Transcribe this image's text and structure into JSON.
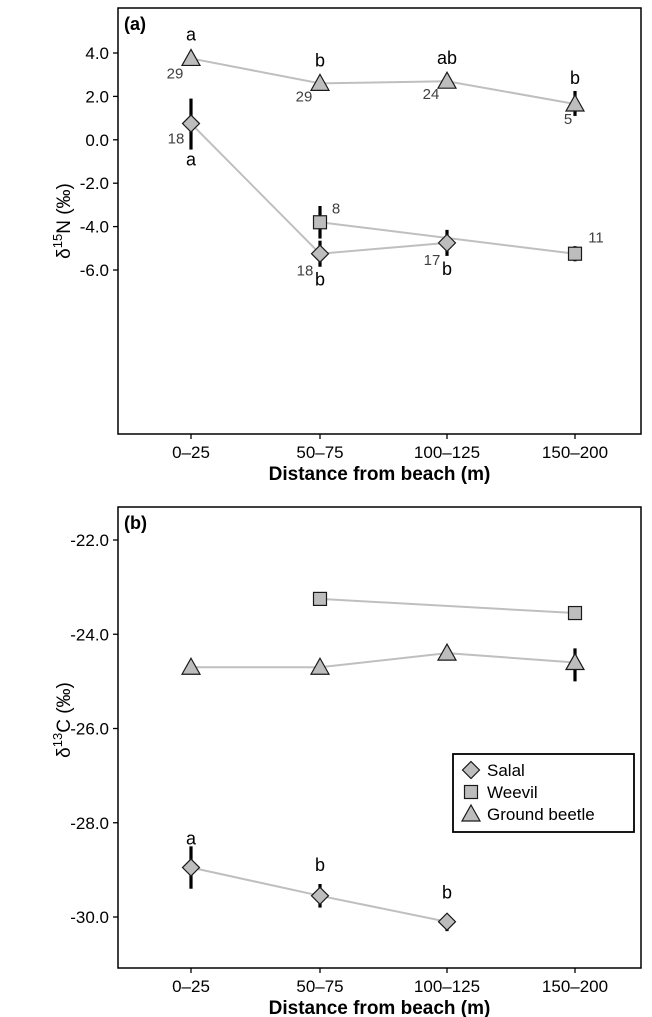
{
  "chart_data": [
    {
      "type": "line",
      "panel_label": "(a)",
      "xlabel": "Distance from beach (m)",
      "ylabel_main": "δ",
      "ylabel_sup": "15",
      "ylabel_rest": "N (‰)",
      "categories": [
        "0–25",
        "50–75",
        "100–125",
        "150–200"
      ],
      "ylim": [
        -7.6,
        5.3
      ],
      "yticks": [
        {
          "value": 4.0,
          "label": "4.0"
        },
        {
          "value": 2.0,
          "label": "2.0"
        },
        {
          "value": 0.0,
          "label": "0.0"
        },
        {
          "value": -2.0,
          "label": "-2.0"
        },
        {
          "value": -4.0,
          "label": "-4.0"
        },
        {
          "value": -6.0,
          "label": "-6.0"
        }
      ],
      "grid": false,
      "series": [
        {
          "name": "Ground beetle",
          "marker": "triangle",
          "points": [
            {
              "x": "0–25",
              "y": 3.75,
              "err_lo": 3.4,
              "err_hi": 4.0,
              "n": "29",
              "letter": "a"
            },
            {
              "x": "50–75",
              "y": 2.6,
              "err_lo": 2.3,
              "err_hi": 2.85,
              "n": "29",
              "letter": "b"
            },
            {
              "x": "100–125",
              "y": 2.7,
              "err_lo": 2.4,
              "err_hi": 3.0,
              "n": "24",
              "letter": "ab"
            },
            {
              "x": "150–200",
              "y": 1.65,
              "err_lo": 1.1,
              "err_hi": 2.25,
              "n": "5",
              "letter": "b"
            }
          ]
        },
        {
          "name": "Salal",
          "marker": "diamond",
          "points": [
            {
              "x": "0–25",
              "y": 0.75,
              "err_lo": -0.45,
              "err_hi": 1.9,
              "n": "18",
              "letter": "a"
            },
            {
              "x": "50–75",
              "y": -5.25,
              "err_lo": -5.85,
              "err_hi": -4.65,
              "n": "18",
              "letter": "b"
            },
            {
              "x": "100–125",
              "y": -4.75,
              "err_lo": -5.35,
              "err_hi": -4.15,
              "n": "17",
              "letter": "b"
            }
          ]
        },
        {
          "name": "Weevil",
          "marker": "square",
          "points": [
            {
              "x": "50–75",
              "y": -3.8,
              "err_lo": -4.55,
              "err_hi": -3.05,
              "n": "8",
              "letter": ""
            },
            {
              "x": "150–200",
              "y": -5.25,
              "err_lo": -5.6,
              "err_hi": -4.9,
              "n": "11",
              "letter": ""
            }
          ]
        }
      ]
    },
    {
      "type": "line",
      "panel_label": "(b)",
      "xlabel": "Distance from beach (m)",
      "ylabel_main": "δ",
      "ylabel_sup": "13",
      "ylabel_rest": "C (‰)",
      "categories": [
        "0–25",
        "50–75",
        "100–125",
        "150–200"
      ],
      "ylim": [
        -30.85,
        -21.7
      ],
      "yticks": [
        {
          "value": -22.0,
          "label": "-22.0"
        },
        {
          "value": -24.0,
          "label": "-24.0"
        },
        {
          "value": -26.0,
          "label": "-26.0"
        },
        {
          "value": -28.0,
          "label": "-28.0"
        },
        {
          "value": -30.0,
          "label": "-30.0"
        }
      ],
      "grid": false,
      "legend_position": "right",
      "legend": [
        "Salal",
        "Weevil",
        "Ground beetle"
      ],
      "series": [
        {
          "name": "Weevil",
          "marker": "square",
          "points": [
            {
              "x": "50–75",
              "y": -23.25,
              "err_lo": null,
              "err_hi": null,
              "n": "",
              "letter": ""
            },
            {
              "x": "150–200",
              "y": -23.55,
              "err_lo": null,
              "err_hi": null,
              "n": "",
              "letter": ""
            }
          ]
        },
        {
          "name": "Ground beetle",
          "marker": "triangle",
          "points": [
            {
              "x": "0–25",
              "y": -24.7,
              "err_lo": null,
              "err_hi": null,
              "n": "",
              "letter": ""
            },
            {
              "x": "50–75",
              "y": -24.7,
              "err_lo": null,
              "err_hi": null,
              "n": "",
              "letter": ""
            },
            {
              "x": "100–125",
              "y": -24.4,
              "err_lo": -24.55,
              "err_hi": -24.25,
              "n": "",
              "letter": ""
            },
            {
              "x": "150–200",
              "y": -24.6,
              "err_lo": -25.0,
              "err_hi": -24.3,
              "n": "",
              "letter": ""
            }
          ]
        },
        {
          "name": "Salal",
          "marker": "diamond",
          "points": [
            {
              "x": "0–25",
              "y": -28.95,
              "err_lo": -29.4,
              "err_hi": -28.5,
              "n": "",
              "letter": "a"
            },
            {
              "x": "50–75",
              "y": -29.55,
              "err_lo": -29.8,
              "err_hi": -29.3,
              "n": "",
              "letter": "b"
            },
            {
              "x": "100–125",
              "y": -30.1,
              "err_lo": -30.3,
              "err_hi": -29.95,
              "n": "",
              "letter": "b"
            }
          ]
        }
      ]
    }
  ],
  "style": {
    "line_color": "#bfbfbf",
    "marker_fill": "#bdbdbd",
    "marker_stroke": "#1a1a1a",
    "errorbar_color": "#000000",
    "n_label_color": "#404040"
  }
}
